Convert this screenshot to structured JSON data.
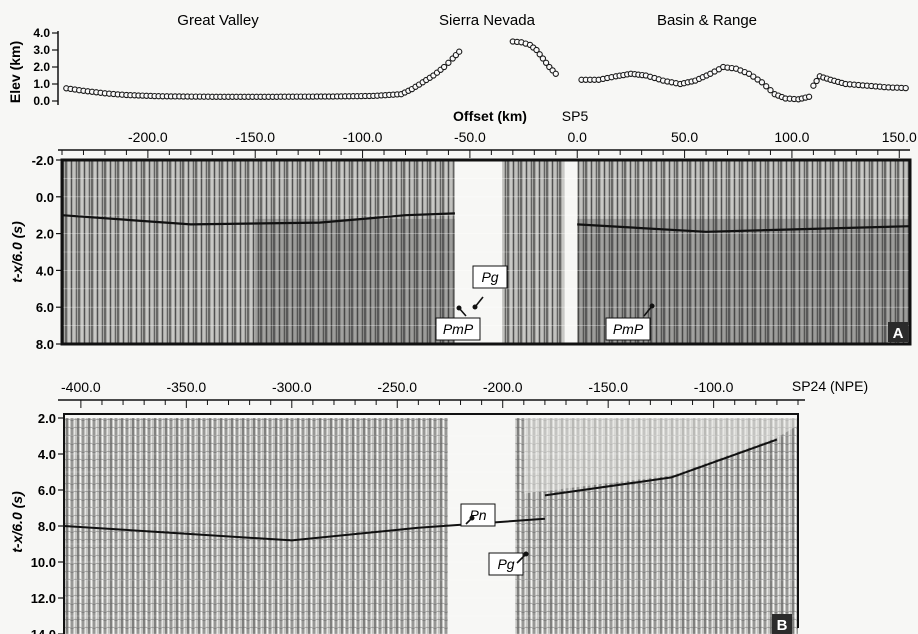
{
  "figure": {
    "top_labels": [
      "Great Valley",
      "Sierra Nevada",
      "Basin & Range"
    ],
    "offset_axis_label": "Offset (km)",
    "sp_label_a": "SP5",
    "sp_label_b": "SP24 (NPE)"
  },
  "chart_data": [
    {
      "type": "scatter",
      "panel": "elevation profile",
      "ylabel": "Elev (km)",
      "xlabel": "Offset (km)",
      "xlim": [
        -240,
        155
      ],
      "ylim": [
        0,
        4
      ],
      "y_ticks": [
        "4.0",
        "3.0",
        "2.0",
        "1.0",
        "0.0"
      ],
      "x_ticks": [
        "-200.0",
        "-150.0",
        "-100.0",
        "-50.0",
        "0.0",
        "50.0",
        "100.0",
        "150.0"
      ],
      "segments": [
        [
          [
            -238,
            0.75
          ],
          [
            -230,
            0.6
          ],
          [
            -220,
            0.45
          ],
          [
            -210,
            0.35
          ],
          [
            -195,
            0.28
          ],
          [
            -170,
            0.25
          ],
          [
            -140,
            0.25
          ],
          [
            -110,
            0.27
          ],
          [
            -95,
            0.3
          ],
          [
            -82,
            0.4
          ],
          [
            -77,
            0.7
          ],
          [
            -72,
            1.1
          ],
          [
            -67,
            1.5
          ],
          [
            -62,
            2.0
          ],
          [
            -58,
            2.5
          ],
          [
            -55,
            2.9
          ],
          [
            -53,
            3.1
          ]
        ],
        [
          [
            -30,
            3.5
          ],
          [
            -26,
            3.45
          ],
          [
            -22,
            3.3
          ],
          [
            -19,
            3.0
          ],
          [
            -16,
            2.5
          ],
          [
            -13,
            2.0
          ],
          [
            -10,
            1.6
          ],
          [
            -8,
            1.35
          ]
        ],
        [
          [
            2,
            1.25
          ],
          [
            10,
            1.25
          ],
          [
            18,
            1.45
          ],
          [
            25,
            1.6
          ],
          [
            32,
            1.5
          ],
          [
            40,
            1.2
          ],
          [
            48,
            1.0
          ],
          [
            55,
            1.2
          ],
          [
            62,
            1.6
          ],
          [
            68,
            2.0
          ],
          [
            74,
            1.9
          ],
          [
            80,
            1.6
          ],
          [
            86,
            1.1
          ],
          [
            92,
            0.4
          ],
          [
            97,
            0.15
          ],
          [
            103,
            0.1
          ],
          [
            108,
            0.25
          ],
          [
            110,
            0.9
          ],
          [
            113,
            1.45
          ],
          [
            118,
            1.25
          ],
          [
            125,
            1.0
          ],
          [
            135,
            0.9
          ],
          [
            145,
            0.8
          ],
          [
            155,
            0.75
          ]
        ]
      ]
    },
    {
      "type": "heatmap",
      "panel": "A",
      "label": "A",
      "xlabel": "Offset (km)",
      "ylabel": "t-x/6.0 (s)",
      "xlim": [
        -240,
        155
      ],
      "ylim": [
        8.0,
        -2.0
      ],
      "y_ticks": [
        "-2.0",
        "0.0",
        "2.0",
        "4.0",
        "6.0",
        "8.0"
      ],
      "annotations": [
        {
          "text": "Pg",
          "x": -57,
          "t": 0.8
        },
        {
          "text": "PmP",
          "x": -60,
          "t": 7.0
        },
        {
          "text": "PmP",
          "x": 25,
          "t": 7.0
        }
      ],
      "phase_lines": [
        [
          [
            -240,
            1.0
          ],
          [
            -180,
            1.5
          ],
          [
            -120,
            1.4
          ],
          [
            -80,
            1.0
          ],
          [
            -57,
            0.9
          ]
        ],
        [
          [
            0,
            1.5
          ],
          [
            60,
            1.9
          ],
          [
            155,
            1.6
          ]
        ]
      ]
    },
    {
      "type": "heatmap",
      "panel": "B",
      "label": "B",
      "xlabel": "Offset (km)",
      "ylabel": "t-x/6.0 (s)",
      "xlim": [
        -408,
        -60
      ],
      "ylim": [
        14.0,
        2.0
      ],
      "x_ticks": [
        "-400.0",
        "-350.0",
        "-300.0",
        "-250.0",
        "-200.0",
        "-150.0",
        "-100.0"
      ],
      "y_ticks": [
        "2.0",
        "4.0",
        "6.0",
        "8.0",
        "10.0",
        "12.0",
        "14.0"
      ],
      "annotations": [
        {
          "text": "Pn",
          "x": -225,
          "t": 8.0
        },
        {
          "text": "Pg",
          "x": -205,
          "t": 10.0
        }
      ],
      "phase_lines": [
        [
          [
            -408,
            8.0
          ],
          [
            -300,
            8.8
          ],
          [
            -240,
            8.1
          ],
          [
            -180,
            7.6
          ]
        ],
        [
          [
            -180,
            6.3
          ],
          [
            -120,
            5.3
          ],
          [
            -70,
            3.2
          ]
        ]
      ]
    }
  ]
}
